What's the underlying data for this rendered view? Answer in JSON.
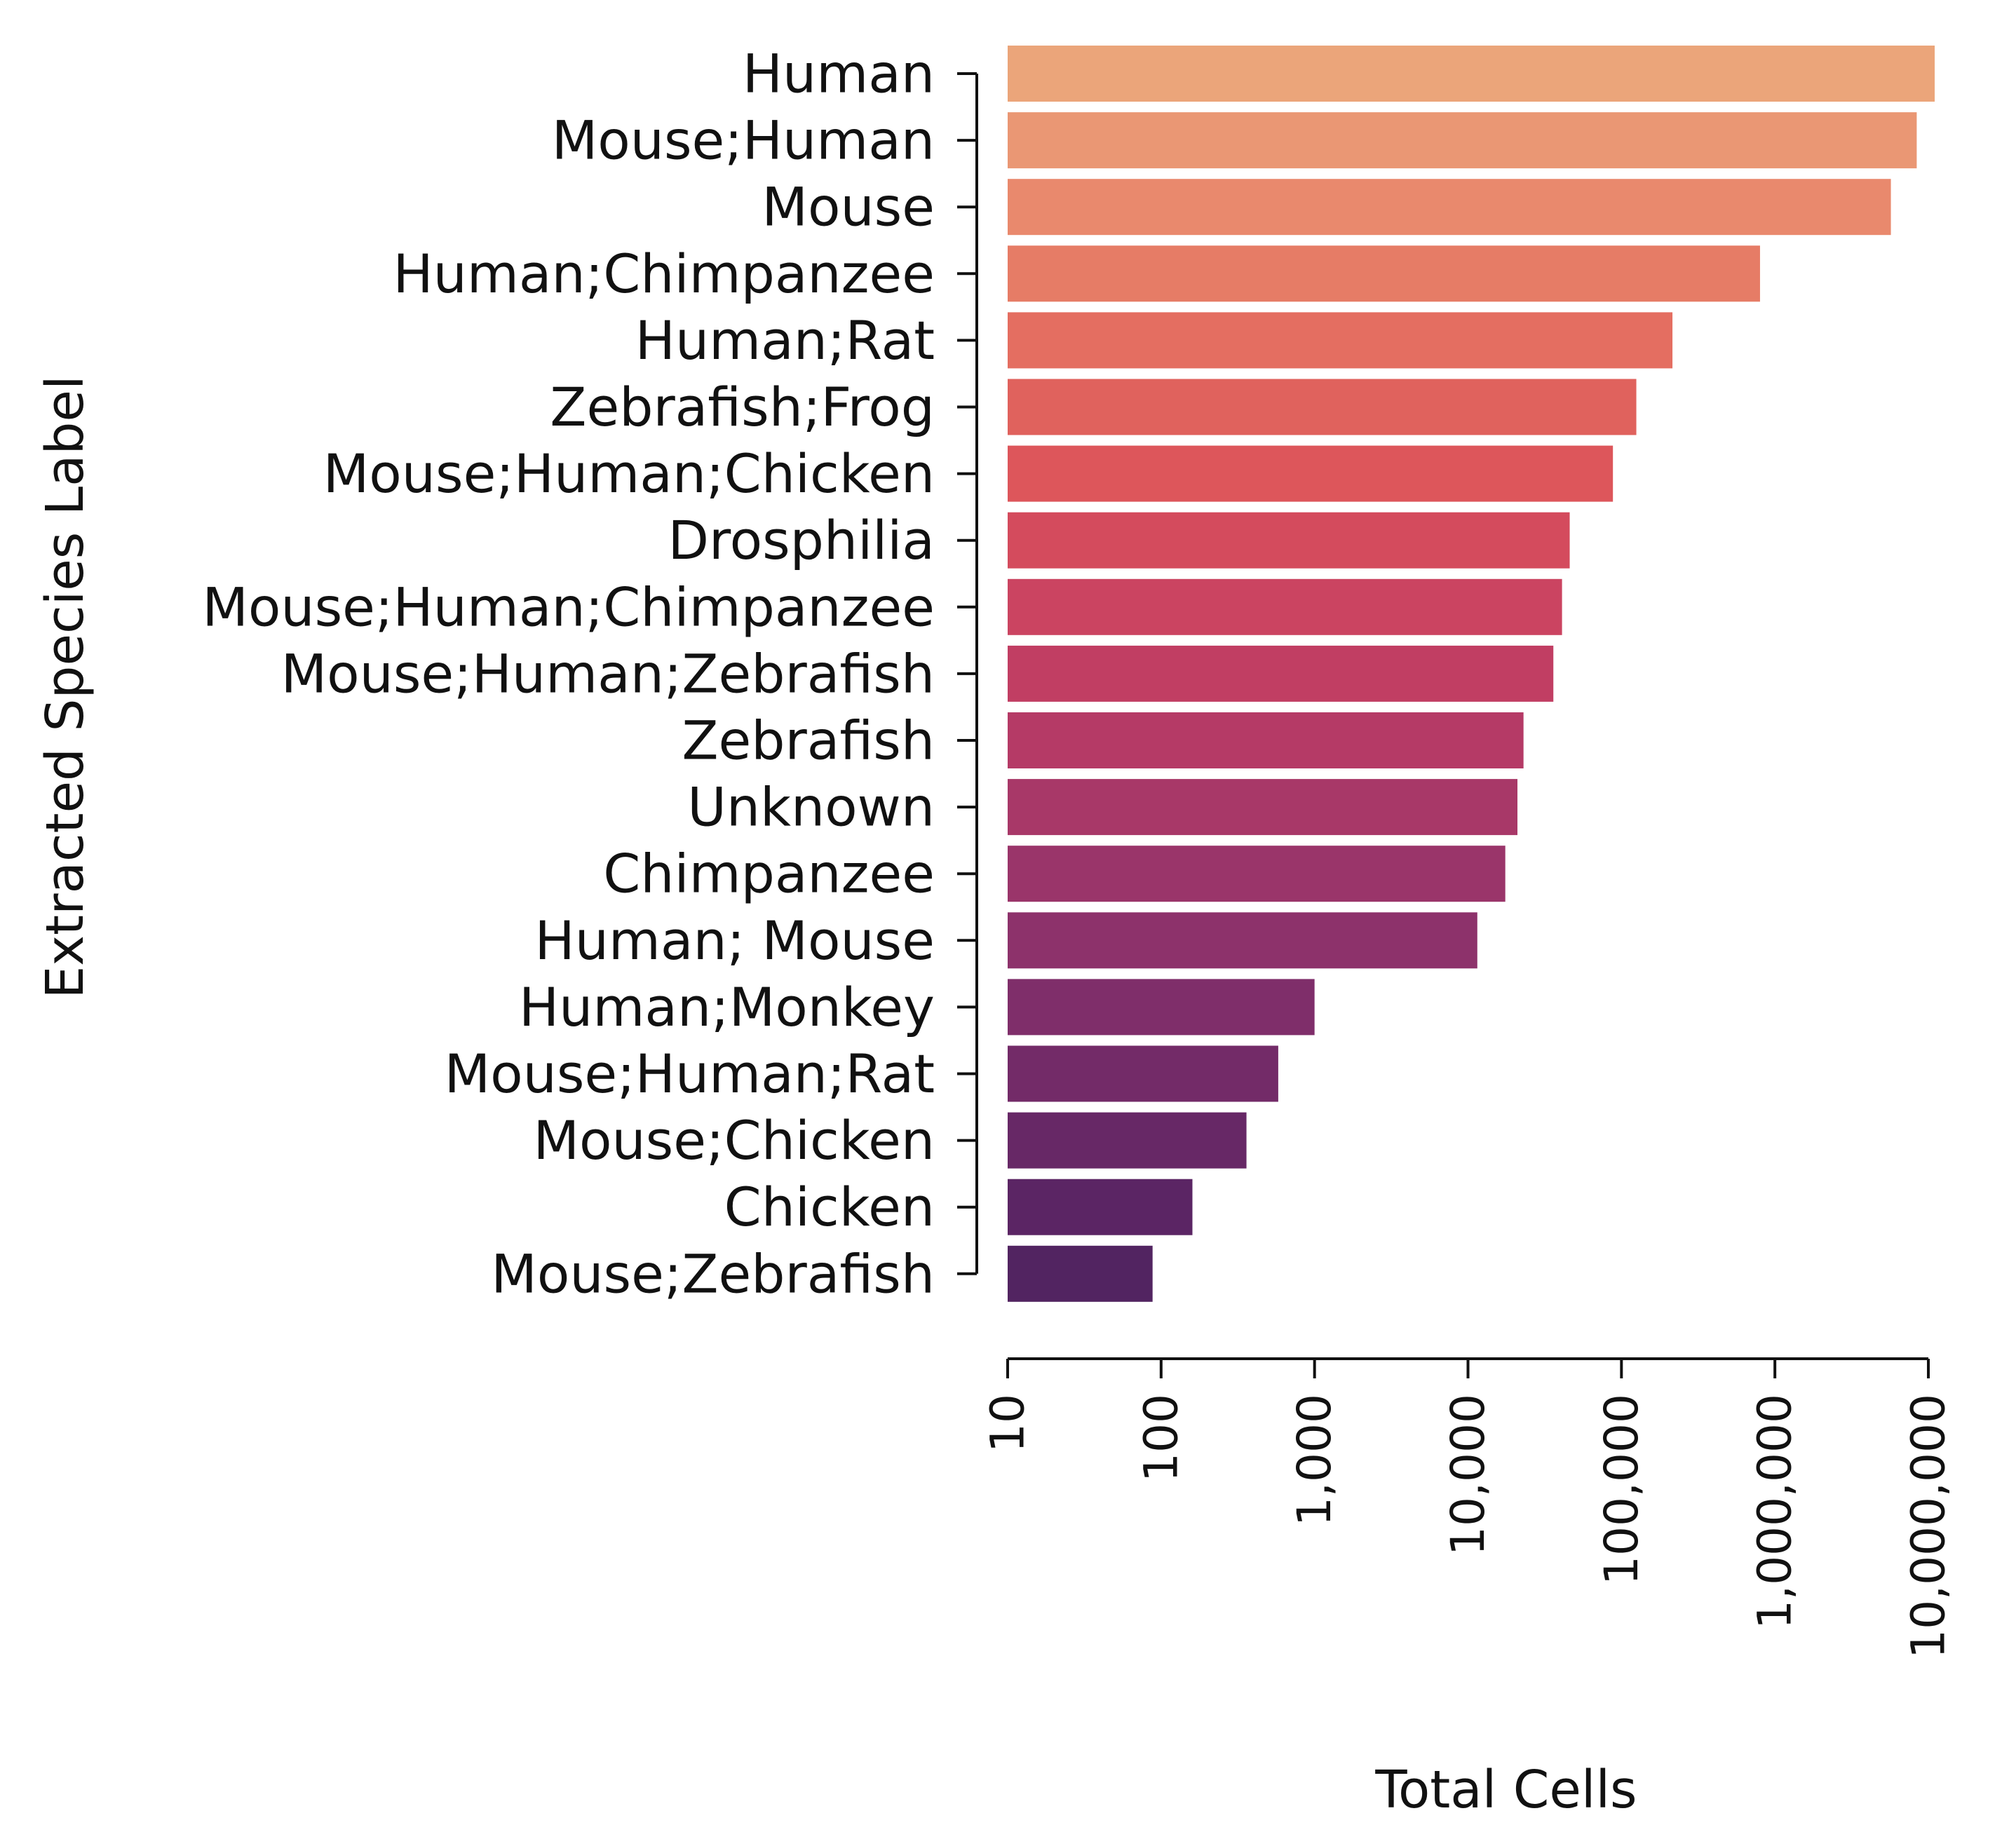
{
  "chart_data": {
    "type": "bar",
    "orientation": "horizontal",
    "xlabel": "Total Cells",
    "ylabel": "Extracted Species Label",
    "x_scale": "log",
    "xlim": [
      10,
      10000000
    ],
    "x_ticks": [
      10,
      100,
      1000,
      10000,
      100000,
      1000000,
      10000000
    ],
    "x_tick_labels": [
      "10",
      "100",
      "1,000",
      "10,000",
      "100,000",
      "1,000,000",
      "10,000,000"
    ],
    "grid": false,
    "legend": "none",
    "categories": [
      "Human",
      "Mouse;Human",
      "Mouse",
      "Human;Chimpanzee",
      "Human;Rat",
      "Zebrafish;Frog",
      "Mouse;Human;Chicken",
      "Drosphilia",
      "Mouse;Human;Chimpanzee",
      "Mouse;Human;Zebrafish",
      "Zebrafish",
      "Unknown",
      "Chimpanzee",
      "Human; Mouse",
      "Human;Monkey",
      "Mouse;Human;Rat",
      "Mouse;Chicken",
      "Chicken",
      "Mouse;Zebrafish"
    ],
    "values": [
      11000000,
      8400000,
      5700000,
      800000,
      215000,
      125000,
      88000,
      46000,
      41000,
      36000,
      23000,
      21000,
      17500,
      11500,
      1000,
      580,
      360,
      160,
      88
    ],
    "colors": [
      "#eba57a",
      "#ea9774",
      "#e9896d",
      "#e67c66",
      "#e46e61",
      "#e0625d",
      "#dd565b",
      "#d44b5d",
      "#cb4461",
      "#c13e63",
      "#b53a66",
      "#a83868",
      "#9a356a",
      "#8d326b",
      "#7f2e6a",
      "#732b68",
      "#672866",
      "#5b2564",
      "#522461"
    ]
  }
}
